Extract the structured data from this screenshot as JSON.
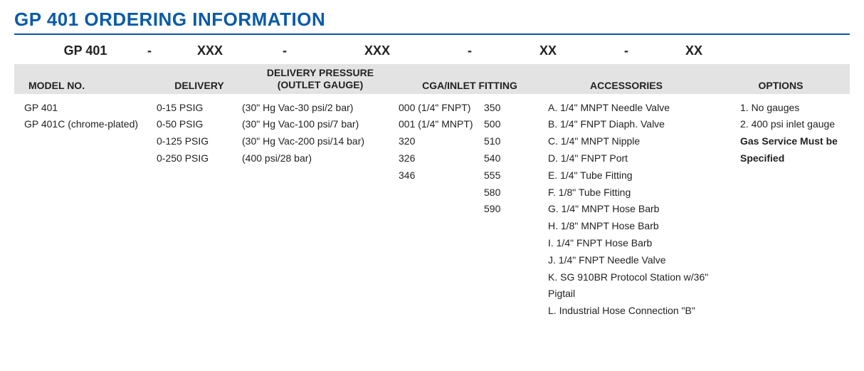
{
  "title": "GP 401 ORDERING INFORMATION",
  "title_color": "#0a5aa8",
  "format": {
    "model": "GP 401",
    "sep": "-",
    "p1": "XXX",
    "p2": "XXX",
    "p3": "XX",
    "p4": "XX"
  },
  "headers": {
    "model": "MODEL NO.",
    "delivery": "DELIVERY",
    "outlet_top": "DELIVERY PRESSURE",
    "outlet_bottom": "(OUTLET GAUGE)",
    "cga": "CGA/INLET FITTING",
    "accessories": "ACCESSORIES",
    "options": "OPTIONS"
  },
  "model_no": [
    "GP 401",
    "GP 401C (chrome-plated)"
  ],
  "delivery": [
    "0-15 PSIG",
    "0-50 PSIG",
    "0-125 PSIG",
    "0-250 PSIG"
  ],
  "outlet_gauge": [
    "(30\" Hg Vac-30 psi/2 bar)",
    "(30\" Hg Vac-100 psi/7 bar)",
    "(30\" Hg Vac-200 psi/14 bar)",
    "(400 psi/28 bar)"
  ],
  "cga_col1": [
    "000 (1/4\" FNPT)",
    "001 (1/4\" MNPT)",
    "320",
    "326",
    "346"
  ],
  "cga_col2": [
    "350",
    "500",
    "510",
    "540",
    "555",
    "580",
    "590"
  ],
  "accessories": [
    "A. 1/4\" MNPT Needle Valve",
    "B. 1/4\" FNPT Diaph. Valve",
    "C. 1/4\" MNPT Nipple",
    "D. 1/4\" FNPT Port",
    "E. 1/4\" Tube Fitting",
    "F. 1/8\" Tube Fitting",
    "G. 1/4\" MNPT Hose Barb",
    "H. 1/8\" MNPT Hose Barb",
    "I. 1/4\" FNPT Hose Barb",
    "J. 1/4\" FNPT Needle Valve",
    "K. SG 910BR Protocol Station w/36\" Pigtail",
    "L. Industrial Hose Connection \"B\""
  ],
  "options": [
    "1. No gauges",
    "2. 400 psi inlet gauge"
  ],
  "options_note_1": "Gas Service Must be",
  "options_note_2": "Specified",
  "colors": {
    "header_band": "#e3e3e3",
    "text": "#222222",
    "background": "#ffffff"
  },
  "font": {
    "title_size_pt": 20,
    "header_size_pt": 11,
    "body_size_pt": 10
  }
}
